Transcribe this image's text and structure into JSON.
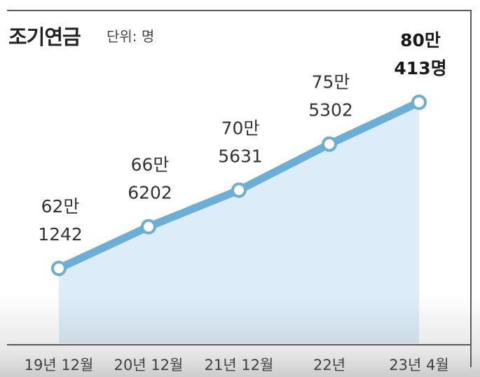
{
  "header": {
    "title": "조기연금",
    "unit": "단위: 명"
  },
  "chart_data": {
    "type": "area",
    "title": "조기연금",
    "ylabel": "단위: 명",
    "categories": [
      "19년 12월",
      "20년 12월",
      "21년 12월",
      "22년",
      "23년 4월"
    ],
    "values": [
      621242,
      666202,
      705631,
      755302,
      800413
    ],
    "labels": [
      [
        "62만",
        "1242"
      ],
      [
        "66만",
        "6202"
      ],
      [
        "70만",
        "5631"
      ],
      [
        "75만",
        "5302"
      ],
      [
        "80만",
        "413명"
      ]
    ],
    "highlight_last": true,
    "grid": false,
    "colors": {
      "line": "#6baed6",
      "fill": "#d6eaf8",
      "marker_fill": "#ffffff",
      "text": "#333333"
    }
  }
}
